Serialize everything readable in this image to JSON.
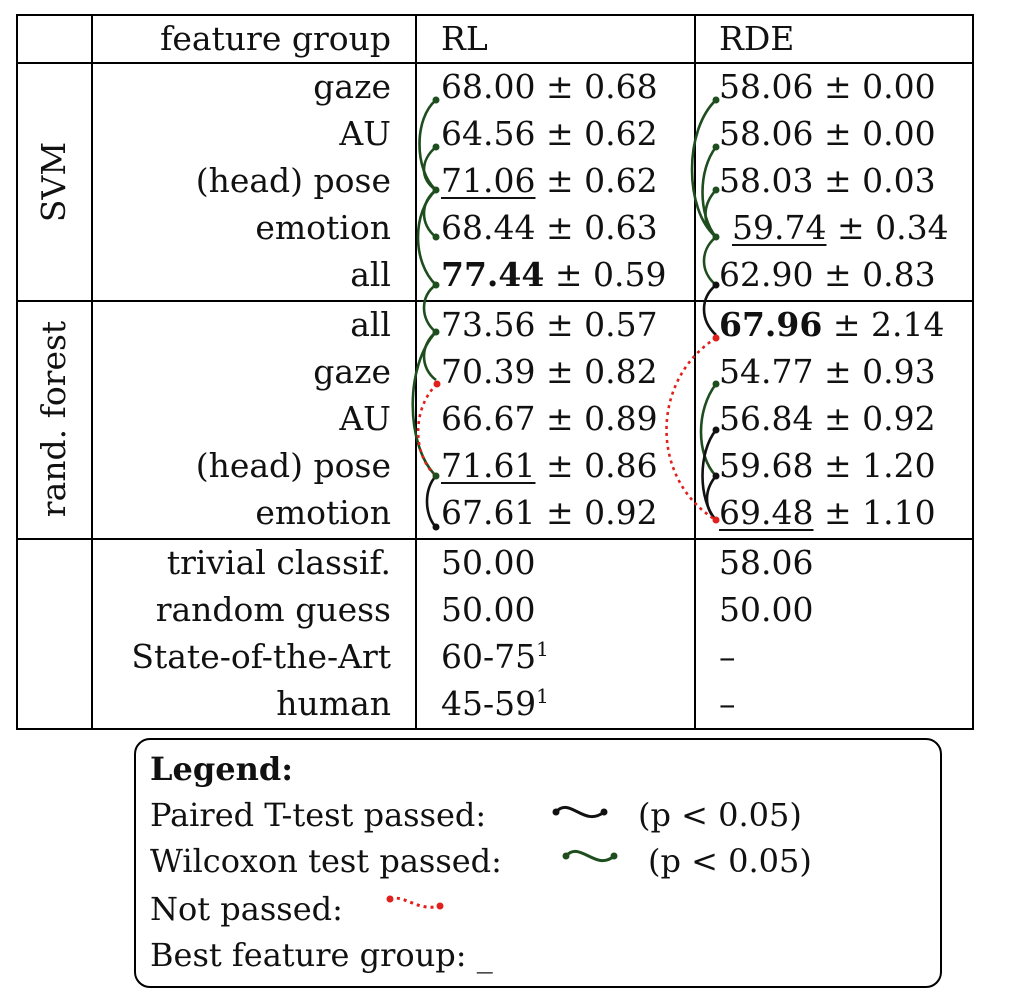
{
  "table": {
    "header": {
      "group_col": "",
      "feature_col": "feature group",
      "rl_col": "RL",
      "rde_col": "RDE"
    },
    "groups": [
      {
        "label": "SVM",
        "rows": [
          {
            "feature": "gaze",
            "rl": "68.00",
            "rl_pm": "± 0.68",
            "rde": "58.06",
            "rde_pm": "± 0.00"
          },
          {
            "feature": "AU",
            "rl": "64.56",
            "rl_pm": "± 0.62",
            "rde": "58.06",
            "rde_pm": "± 0.00"
          },
          {
            "feature": "(head) pose",
            "rl": "71.06",
            "rl_pm": "± 0.62",
            "rde": "58.03",
            "rde_pm": "± 0.03"
          },
          {
            "feature": "emotion",
            "rl": "68.44",
            "rl_pm": "± 0.63",
            "rde": "59.74",
            "rde_pm": "± 0.34"
          },
          {
            "feature": "all",
            "rl": "77.44",
            "rl_pm": "± 0.59",
            "rde": "62.90",
            "rde_pm": "± 0.83"
          }
        ]
      },
      {
        "label": "rand. forest",
        "rows": [
          {
            "feature": "all",
            "rl": "73.56",
            "rl_pm": "± 0.57",
            "rde": "67.96",
            "rde_pm": "± 2.14"
          },
          {
            "feature": "gaze",
            "rl": "70.39",
            "rl_pm": "± 0.82",
            "rde": "54.77",
            "rde_pm": "± 0.93"
          },
          {
            "feature": "AU",
            "rl": "66.67",
            "rl_pm": "± 0.89",
            "rde": "56.84",
            "rde_pm": "± 0.92"
          },
          {
            "feature": "(head) pose",
            "rl": "71.61",
            "rl_pm": "± 0.86",
            "rde": "59.68",
            "rde_pm": "± 1.20"
          },
          {
            "feature": "emotion",
            "rl": "67.61",
            "rl_pm": "± 0.92",
            "rde": "69.48",
            "rde_pm": "± 1.10"
          }
        ]
      }
    ],
    "baselines": [
      {
        "feature": "trivial classif.",
        "rl": "50.00",
        "rde": "58.06"
      },
      {
        "feature": "random guess",
        "rl": "50.00",
        "rde": "50.00"
      },
      {
        "feature": "State-of-the-Art",
        "rl": "60-75",
        "rl_sup": "1",
        "rde": "–"
      },
      {
        "feature": "human",
        "rl": "45-59",
        "rl_sup": "1",
        "rde": "–"
      }
    ]
  },
  "legend": {
    "title": "Legend:",
    "paired": "Paired T-test passed:",
    "paired_p": "(p < 0.05)",
    "wilcoxon": "Wilcoxon test passed:",
    "wilcoxon_p": "(p < 0.05)",
    "not_passed": "Not passed:",
    "best": "Best feature group:",
    "best_symbol": "_"
  },
  "colors": {
    "paired": "#111111",
    "wilcoxon": "#1e4d1e",
    "not_passed": "#e0201c"
  }
}
